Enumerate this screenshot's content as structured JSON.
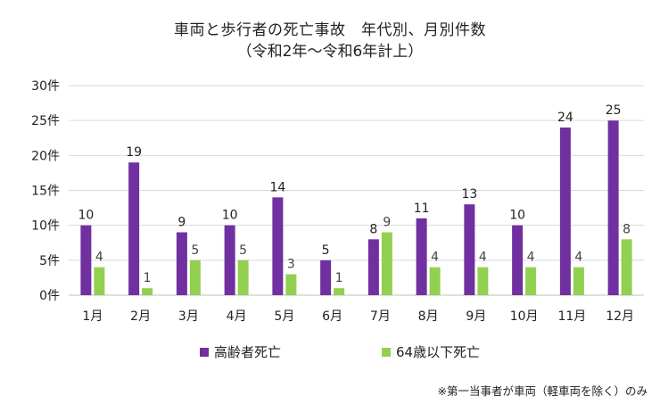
{
  "chart_data": {
    "type": "bar",
    "title": "車両と歩行者の死亡事故　年代別、月別件数",
    "subtitle": "（令和2年～令和6年計上）",
    "categories": [
      "1月",
      "2月",
      "3月",
      "4月",
      "5月",
      "6月",
      "7月",
      "8月",
      "9月",
      "10月",
      "11月",
      "12月"
    ],
    "series": [
      {
        "name": "高齢者死亡",
        "color": "#7030a0",
        "values": [
          10,
          19,
          9,
          10,
          14,
          5,
          8,
          11,
          13,
          10,
          24,
          25
        ]
      },
      {
        "name": "64歳以下死亡",
        "color": "#92d050",
        "values": [
          4,
          1,
          5,
          5,
          3,
          1,
          9,
          4,
          4,
          4,
          4,
          8
        ]
      }
    ],
    "ylim": [
      0,
      30
    ],
    "yticks": [
      "0件",
      "5件",
      "10件",
      "15件",
      "20件",
      "25件",
      "30件"
    ],
    "grid": true,
    "legend_position": "bottom",
    "note": "※第一当事者が車両（軽車両を除く）のみ"
  }
}
